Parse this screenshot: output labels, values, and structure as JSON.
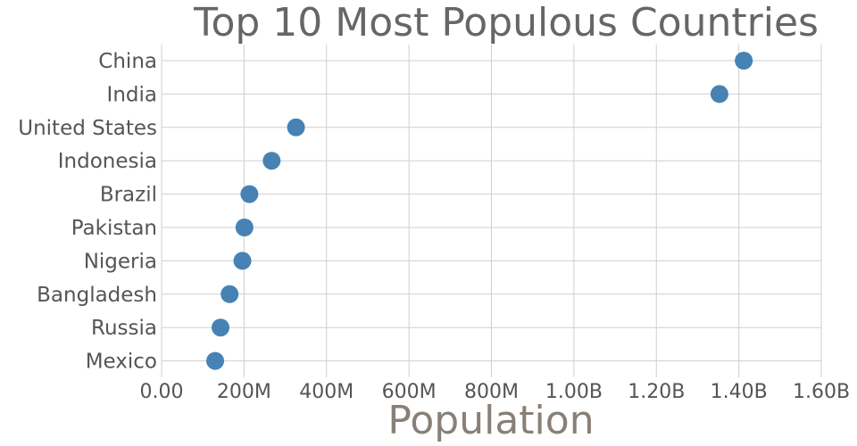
{
  "chart_data": {
    "type": "scatter",
    "title": "Top 10 Most Populous Countries",
    "xlabel": "Population",
    "ylabel": "",
    "xlim": [
      0,
      1600000000
    ],
    "x_ticks": [
      0,
      200000000,
      400000000,
      600000000,
      800000000,
      1000000000,
      1200000000,
      1400000000,
      1600000000
    ],
    "x_tick_labels": [
      "0.00",
      "200M",
      "400M",
      "600M",
      "800M",
      "1.00B",
      "1.20B",
      "1.40B",
      "1.60B"
    ],
    "grid": true,
    "legend": "none",
    "marker_color": "#4682b4",
    "categories": [
      "China",
      "India",
      "United States",
      "Indonesia",
      "Brazil",
      "Pakistan",
      "Nigeria",
      "Bangladesh",
      "Russia",
      "Mexico"
    ],
    "values": [
      1412000000,
      1353000000,
      326000000,
      267000000,
      213000000,
      201000000,
      196000000,
      165000000,
      143000000,
      130000000
    ]
  }
}
